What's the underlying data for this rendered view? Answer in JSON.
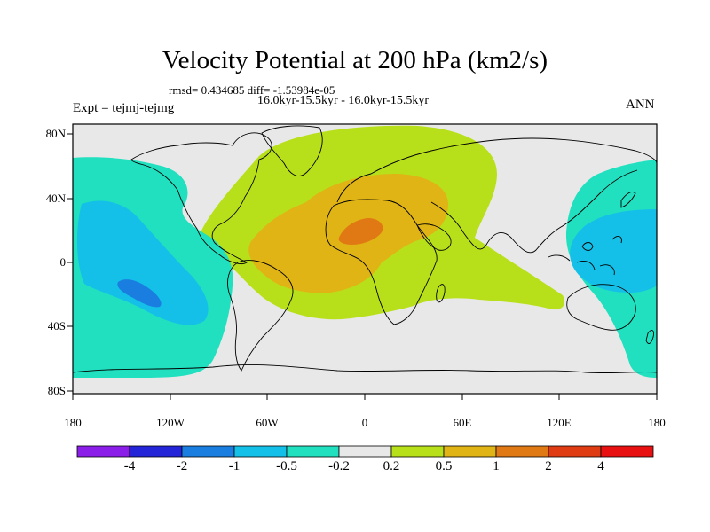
{
  "title": "Velocity Potential at 200 hPa (km2/s)",
  "stats": "rmsd= 0.434685 diff= -1.53984e-05",
  "period": "16.0kyr-15.5kyr - 16.0kyr-15.5kyr",
  "experiment": "Expt = tejmj-tejmg",
  "season": "ANN",
  "lat_labels": [
    "80N",
    "40N",
    "0",
    "40S",
    "80S"
  ],
  "lon_labels": [
    "180",
    "120W",
    "60W",
    "0",
    "60E",
    "120E",
    "180"
  ],
  "colorbar": {
    "labels": [
      "-4",
      "-2",
      "-1",
      "-0.5",
      "-0.2",
      "0.2",
      "0.5",
      "1",
      "2",
      "4"
    ],
    "colors": [
      "#8b1ee8",
      "#2424d8",
      "#1a7ee0",
      "#14c0e8",
      "#20e0c0",
      "#e8e8e8",
      "#b8e01a",
      "#e0b414",
      "#e07814",
      "#e03c14",
      "#e81010"
    ]
  },
  "colors": {
    "ocean_bg": "#e8e8e8",
    "positive_outer": "#b8e01a",
    "positive_mid": "#e0b414",
    "positive_core": "#e07814",
    "negative_outer": "#20e0c0",
    "negative_mid": "#14c0e8",
    "negative_core": "#1a7ee0",
    "coast": "#000000"
  }
}
